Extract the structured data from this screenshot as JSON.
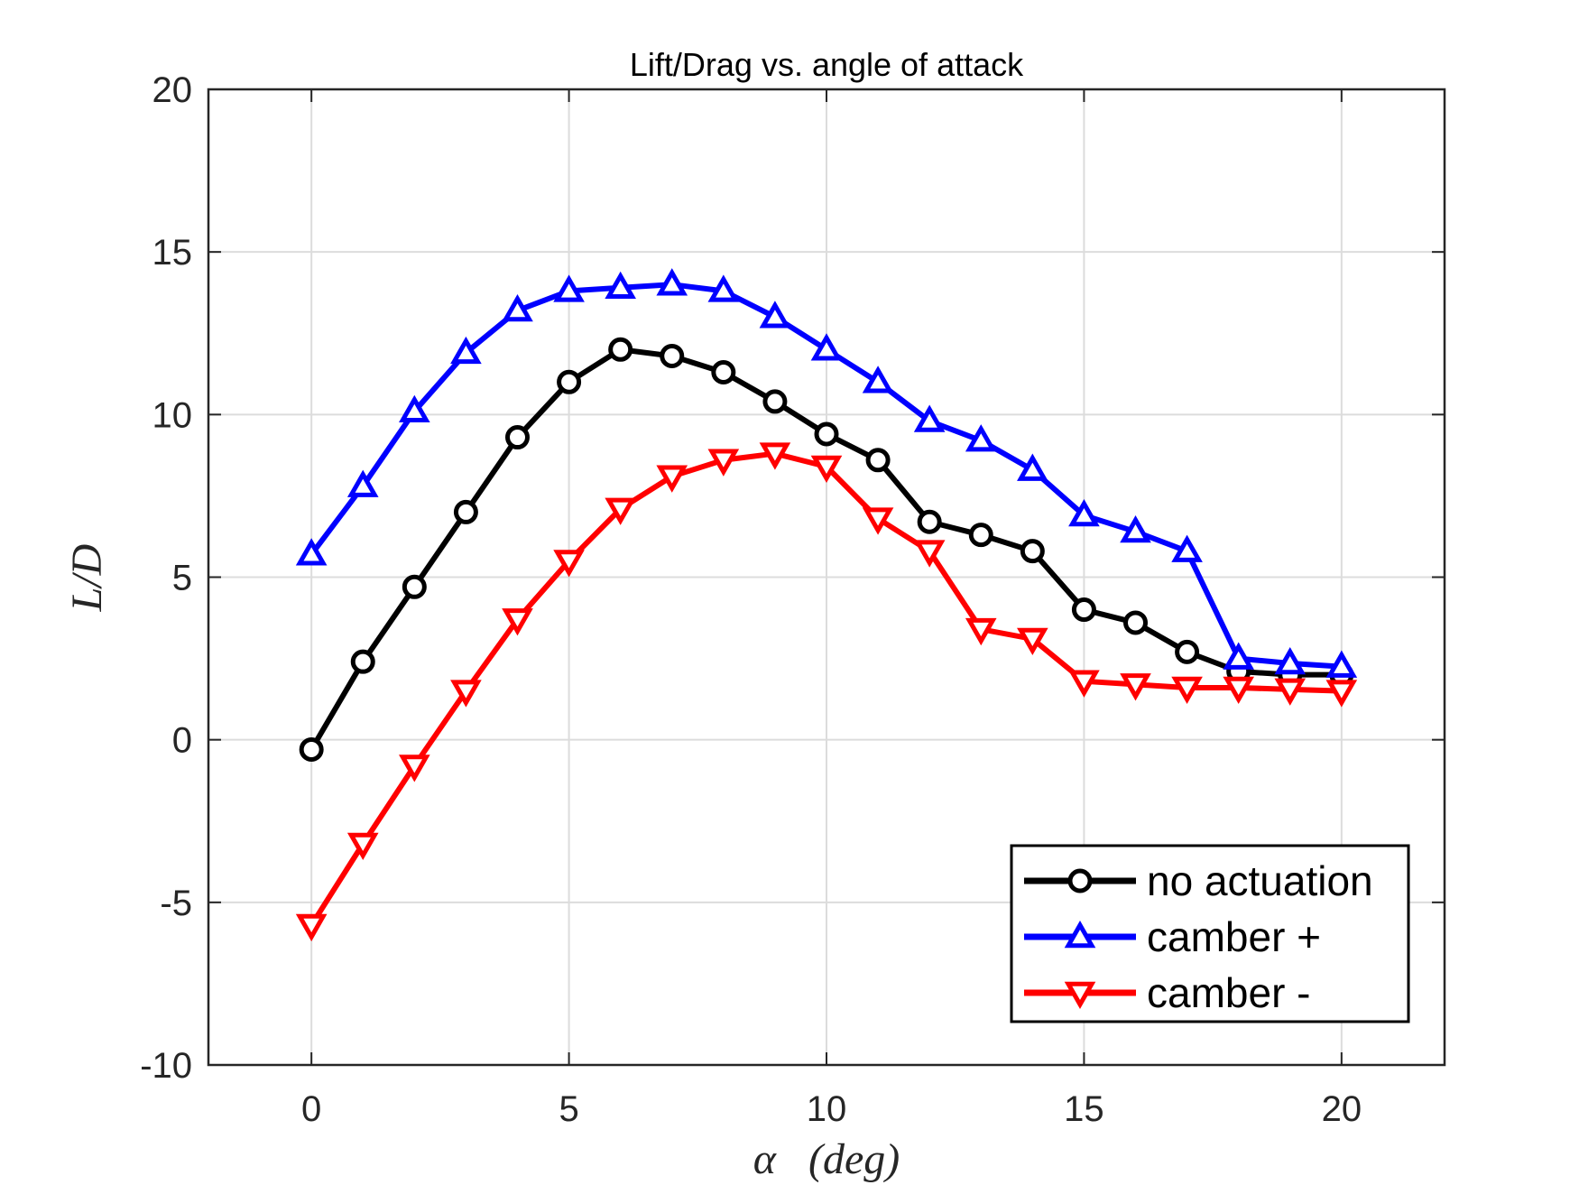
{
  "chart_data": {
    "type": "line",
    "title": "Lift/Drag vs. angle of attack",
    "xlabel": "α   (deg)",
    "ylabel": "L/D",
    "xlim": [
      -2,
      22
    ],
    "ylim": [
      -10,
      20
    ],
    "xticks": [
      0,
      5,
      10,
      15,
      20
    ],
    "yticks": [
      -10,
      -5,
      0,
      5,
      10,
      15,
      20
    ],
    "grid": true,
    "legend_position": "bottom-right",
    "x": [
      0,
      1,
      2,
      3,
      4,
      5,
      6,
      7,
      8,
      9,
      10,
      11,
      12,
      13,
      14,
      15,
      16,
      17,
      18,
      19,
      20
    ],
    "series": [
      {
        "name": "no actuation",
        "color": "#000000",
        "marker": "circle",
        "values": [
          -0.3,
          2.4,
          4.7,
          7.0,
          9.3,
          11.0,
          12.0,
          11.8,
          11.3,
          10.4,
          9.4,
          8.6,
          6.7,
          6.3,
          5.8,
          4.0,
          3.6,
          2.7,
          2.1,
          2.0,
          2.0
        ]
      },
      {
        "name": "camber +",
        "color": "#0000ff",
        "marker": "triangle-up",
        "values": [
          5.7,
          7.8,
          10.1,
          11.9,
          13.2,
          13.8,
          13.9,
          14.0,
          13.8,
          13.0,
          12.0,
          11.0,
          9.8,
          9.2,
          8.3,
          6.9,
          6.4,
          5.8,
          2.5,
          2.35,
          2.25
        ]
      },
      {
        "name": "camber -",
        "color": "#ff0000",
        "marker": "triangle-down",
        "values": [
          -5.7,
          -3.2,
          -0.8,
          1.5,
          3.7,
          5.5,
          7.1,
          8.1,
          8.6,
          8.8,
          8.4,
          6.8,
          5.8,
          3.4,
          3.1,
          1.8,
          1.7,
          1.6,
          1.6,
          1.55,
          1.5
        ]
      }
    ]
  }
}
